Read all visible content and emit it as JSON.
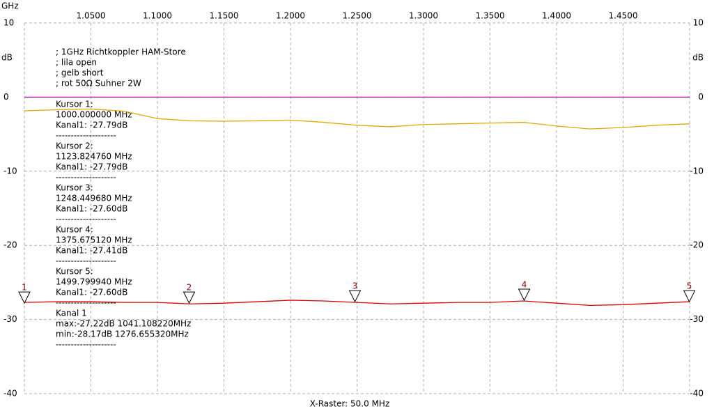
{
  "chart_data": {
    "type": "line",
    "x_label": "GHz",
    "y_label": "dB",
    "footer": "X-Raster: 50.0 MHz",
    "xlim": [
      1.0,
      1.5
    ],
    "xticks": [
      {
        "value": 1.05,
        "label": "1.0500"
      },
      {
        "value": 1.1,
        "label": "1.1000"
      },
      {
        "value": 1.15,
        "label": "1.1500"
      },
      {
        "value": 1.2,
        "label": "1.2000"
      },
      {
        "value": 1.25,
        "label": "1.2500"
      },
      {
        "value": 1.3,
        "label": "1.3000"
      },
      {
        "value": 1.35,
        "label": "1.3500"
      },
      {
        "value": 1.4,
        "label": "1.4000"
      },
      {
        "value": 1.45,
        "label": "1.4500"
      }
    ],
    "ylim": [
      -40,
      10
    ],
    "yticks": [
      10,
      0,
      -10,
      -20,
      -30,
      -40
    ],
    "grid": true,
    "x": [
      1.0,
      1.025,
      1.05,
      1.075,
      1.1,
      1.125,
      1.15,
      1.175,
      1.2,
      1.225,
      1.25,
      1.275,
      1.3,
      1.325,
      1.35,
      1.375,
      1.4,
      1.425,
      1.45,
      1.475,
      1.5
    ],
    "series": [
      {
        "color": "#a000a0",
        "values": [
          0,
          0,
          0,
          0,
          0,
          0,
          0,
          0,
          0,
          0,
          0,
          0,
          0,
          0,
          0,
          0,
          0,
          0,
          0,
          0,
          0
        ]
      },
      {
        "color": "#e0a800",
        "values": [
          -1.85,
          -1.7,
          -1.6,
          -1.9,
          -2.9,
          -3.2,
          -3.25,
          -3.2,
          -3.1,
          -3.4,
          -3.8,
          -4.0,
          -3.7,
          -3.6,
          -3.5,
          -3.4,
          -3.9,
          -4.3,
          -4.1,
          -3.8,
          -3.6
        ]
      },
      {
        "color": "#e00000",
        "values": [
          -27.7,
          -27.6,
          -27.6,
          -27.7,
          -27.7,
          -27.9,
          -27.8,
          -27.6,
          -27.4,
          -27.5,
          -27.7,
          -27.9,
          -27.8,
          -27.7,
          -27.7,
          -27.5,
          -27.8,
          -28.1,
          -28.0,
          -27.8,
          -27.6
        ]
      }
    ],
    "cursors": [
      {
        "name": "1",
        "x": 1.0,
        "value": -27.79
      },
      {
        "name": "2",
        "x": 1.12382476,
        "value": -27.79
      },
      {
        "name": "3",
        "x": 1.24844968,
        "value": -27.6
      },
      {
        "name": "4",
        "x": 1.37567512,
        "value": -27.41
      },
      {
        "name": "5",
        "x": 1.49979994,
        "value": -27.6
      }
    ],
    "cursor_color": "#a00000",
    "notes": [
      "; 1GHz Richtkoppler HAM-Store",
      "; lila open",
      "; gelb short",
      "; rot 50Ω Suhner 2W"
    ],
    "cursor_info": [
      "Kursor 1:",
      "1000.000000 MHz",
      "Kanal1: -27.79dB",
      "--------------------",
      "Kursor 2:",
      "1123.824760 MHz",
      "Kanal1: -27.79dB",
      "--------------------",
      "Kursor 3:",
      "1248.449680 MHz",
      "Kanal1: -27.60dB",
      "--------------------",
      "Kursor 4:",
      "1375.675120 MHz",
      "Kanal1: -27.41dB",
      "--------------------",
      "Kursor 5:",
      "1499.799940 MHz",
      "Kanal1: -27.60dB",
      "--------------------",
      "Kanal 1",
      "max:-27.22dB 1041.108220MHz",
      "min:-28.17dB 1276.655320MHz",
      "--------------------"
    ]
  }
}
